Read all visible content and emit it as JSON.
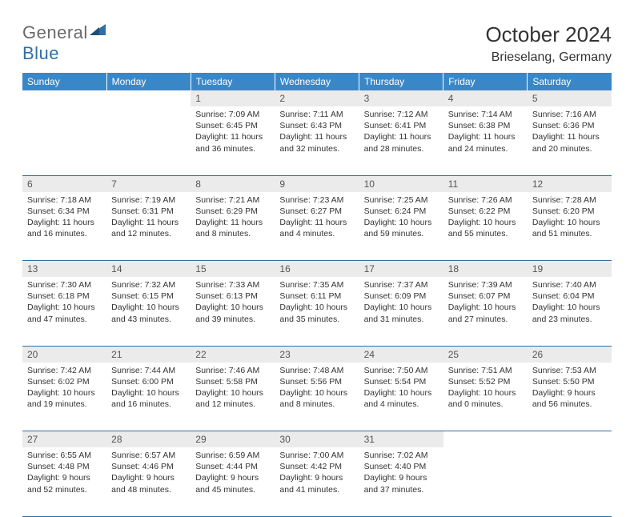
{
  "brand": {
    "part1": "General",
    "part2": "Blue"
  },
  "title": "October 2024",
  "location": "Brieselang, Germany",
  "colors": {
    "header_bg": "#3a87c8",
    "rule": "#2f6fa7",
    "daynum_bg": "#ebebeb",
    "text": "#333333",
    "logo_gray": "#6a6a6a",
    "logo_blue": "#2f6fa7"
  },
  "weekdays": [
    "Sunday",
    "Monday",
    "Tuesday",
    "Wednesday",
    "Thursday",
    "Friday",
    "Saturday"
  ],
  "weeks": [
    {
      "nums": [
        "",
        "",
        "1",
        "2",
        "3",
        "4",
        "5"
      ],
      "cells": [
        null,
        null,
        {
          "sunrise": "Sunrise: 7:09 AM",
          "sunset": "Sunset: 6:45 PM",
          "day1": "Daylight: 11 hours",
          "day2": "and 36 minutes."
        },
        {
          "sunrise": "Sunrise: 7:11 AM",
          "sunset": "Sunset: 6:43 PM",
          "day1": "Daylight: 11 hours",
          "day2": "and 32 minutes."
        },
        {
          "sunrise": "Sunrise: 7:12 AM",
          "sunset": "Sunset: 6:41 PM",
          "day1": "Daylight: 11 hours",
          "day2": "and 28 minutes."
        },
        {
          "sunrise": "Sunrise: 7:14 AM",
          "sunset": "Sunset: 6:38 PM",
          "day1": "Daylight: 11 hours",
          "day2": "and 24 minutes."
        },
        {
          "sunrise": "Sunrise: 7:16 AM",
          "sunset": "Sunset: 6:36 PM",
          "day1": "Daylight: 11 hours",
          "day2": "and 20 minutes."
        }
      ]
    },
    {
      "nums": [
        "6",
        "7",
        "8",
        "9",
        "10",
        "11",
        "12"
      ],
      "cells": [
        {
          "sunrise": "Sunrise: 7:18 AM",
          "sunset": "Sunset: 6:34 PM",
          "day1": "Daylight: 11 hours",
          "day2": "and 16 minutes."
        },
        {
          "sunrise": "Sunrise: 7:19 AM",
          "sunset": "Sunset: 6:31 PM",
          "day1": "Daylight: 11 hours",
          "day2": "and 12 minutes."
        },
        {
          "sunrise": "Sunrise: 7:21 AM",
          "sunset": "Sunset: 6:29 PM",
          "day1": "Daylight: 11 hours",
          "day2": "and 8 minutes."
        },
        {
          "sunrise": "Sunrise: 7:23 AM",
          "sunset": "Sunset: 6:27 PM",
          "day1": "Daylight: 11 hours",
          "day2": "and 4 minutes."
        },
        {
          "sunrise": "Sunrise: 7:25 AM",
          "sunset": "Sunset: 6:24 PM",
          "day1": "Daylight: 10 hours",
          "day2": "and 59 minutes."
        },
        {
          "sunrise": "Sunrise: 7:26 AM",
          "sunset": "Sunset: 6:22 PM",
          "day1": "Daylight: 10 hours",
          "day2": "and 55 minutes."
        },
        {
          "sunrise": "Sunrise: 7:28 AM",
          "sunset": "Sunset: 6:20 PM",
          "day1": "Daylight: 10 hours",
          "day2": "and 51 minutes."
        }
      ]
    },
    {
      "nums": [
        "13",
        "14",
        "15",
        "16",
        "17",
        "18",
        "19"
      ],
      "cells": [
        {
          "sunrise": "Sunrise: 7:30 AM",
          "sunset": "Sunset: 6:18 PM",
          "day1": "Daylight: 10 hours",
          "day2": "and 47 minutes."
        },
        {
          "sunrise": "Sunrise: 7:32 AM",
          "sunset": "Sunset: 6:15 PM",
          "day1": "Daylight: 10 hours",
          "day2": "and 43 minutes."
        },
        {
          "sunrise": "Sunrise: 7:33 AM",
          "sunset": "Sunset: 6:13 PM",
          "day1": "Daylight: 10 hours",
          "day2": "and 39 minutes."
        },
        {
          "sunrise": "Sunrise: 7:35 AM",
          "sunset": "Sunset: 6:11 PM",
          "day1": "Daylight: 10 hours",
          "day2": "and 35 minutes."
        },
        {
          "sunrise": "Sunrise: 7:37 AM",
          "sunset": "Sunset: 6:09 PM",
          "day1": "Daylight: 10 hours",
          "day2": "and 31 minutes."
        },
        {
          "sunrise": "Sunrise: 7:39 AM",
          "sunset": "Sunset: 6:07 PM",
          "day1": "Daylight: 10 hours",
          "day2": "and 27 minutes."
        },
        {
          "sunrise": "Sunrise: 7:40 AM",
          "sunset": "Sunset: 6:04 PM",
          "day1": "Daylight: 10 hours",
          "day2": "and 23 minutes."
        }
      ]
    },
    {
      "nums": [
        "20",
        "21",
        "22",
        "23",
        "24",
        "25",
        "26"
      ],
      "cells": [
        {
          "sunrise": "Sunrise: 7:42 AM",
          "sunset": "Sunset: 6:02 PM",
          "day1": "Daylight: 10 hours",
          "day2": "and 19 minutes."
        },
        {
          "sunrise": "Sunrise: 7:44 AM",
          "sunset": "Sunset: 6:00 PM",
          "day1": "Daylight: 10 hours",
          "day2": "and 16 minutes."
        },
        {
          "sunrise": "Sunrise: 7:46 AM",
          "sunset": "Sunset: 5:58 PM",
          "day1": "Daylight: 10 hours",
          "day2": "and 12 minutes."
        },
        {
          "sunrise": "Sunrise: 7:48 AM",
          "sunset": "Sunset: 5:56 PM",
          "day1": "Daylight: 10 hours",
          "day2": "and 8 minutes."
        },
        {
          "sunrise": "Sunrise: 7:50 AM",
          "sunset": "Sunset: 5:54 PM",
          "day1": "Daylight: 10 hours",
          "day2": "and 4 minutes."
        },
        {
          "sunrise": "Sunrise: 7:51 AM",
          "sunset": "Sunset: 5:52 PM",
          "day1": "Daylight: 10 hours",
          "day2": "and 0 minutes."
        },
        {
          "sunrise": "Sunrise: 7:53 AM",
          "sunset": "Sunset: 5:50 PM",
          "day1": "Daylight: 9 hours",
          "day2": "and 56 minutes."
        }
      ]
    },
    {
      "nums": [
        "27",
        "28",
        "29",
        "30",
        "31",
        "",
        ""
      ],
      "cells": [
        {
          "sunrise": "Sunrise: 6:55 AM",
          "sunset": "Sunset: 4:48 PM",
          "day1": "Daylight: 9 hours",
          "day2": "and 52 minutes."
        },
        {
          "sunrise": "Sunrise: 6:57 AM",
          "sunset": "Sunset: 4:46 PM",
          "day1": "Daylight: 9 hours",
          "day2": "and 48 minutes."
        },
        {
          "sunrise": "Sunrise: 6:59 AM",
          "sunset": "Sunset: 4:44 PM",
          "day1": "Daylight: 9 hours",
          "day2": "and 45 minutes."
        },
        {
          "sunrise": "Sunrise: 7:00 AM",
          "sunset": "Sunset: 4:42 PM",
          "day1": "Daylight: 9 hours",
          "day2": "and 41 minutes."
        },
        {
          "sunrise": "Sunrise: 7:02 AM",
          "sunset": "Sunset: 4:40 PM",
          "day1": "Daylight: 9 hours",
          "day2": "and 37 minutes."
        },
        null,
        null
      ]
    }
  ]
}
